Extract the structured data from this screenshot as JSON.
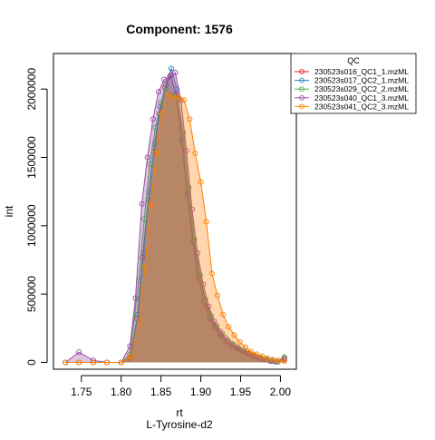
{
  "chart_data": {
    "type": "area",
    "title": "Component: 1576",
    "xlabel": "rt",
    "xlabel2": "L-Tyrosine-d2",
    "ylabel": "int",
    "xlim": [
      1.715,
      2.02
    ],
    "ylim": [
      -50000,
      2260000
    ],
    "x_ticks": [
      1.75,
      1.8,
      1.85,
      1.9,
      1.95,
      2.0
    ],
    "x_tick_labels": [
      "1.75",
      "1.80",
      "1.85",
      "1.90",
      "1.95",
      "2.00"
    ],
    "y_ticks": [
      0,
      500000,
      1000000,
      1500000,
      2000000
    ],
    "y_tick_labels": [
      "0",
      "500000",
      "1000000",
      "1500000",
      "2000000"
    ],
    "legend": {
      "title": "QC",
      "position": "top-right"
    },
    "series": [
      {
        "name": "230523s016_QC1_1.mzML",
        "color": "#e41a1c",
        "x": [
          1.73,
          1.747,
          1.765,
          1.782,
          1.8,
          1.811,
          1.82,
          1.827,
          1.834,
          1.841,
          1.848,
          1.855,
          1.862,
          1.869,
          1.876,
          1.883,
          1.89,
          1.897,
          1.904,
          1.911,
          1.918,
          1.925,
          1.932,
          1.939,
          1.946,
          1.953,
          1.96,
          1.967,
          1.974,
          1.981,
          1.988,
          1.995,
          2.005
        ],
        "y": [
          0,
          0,
          0,
          0,
          0,
          30000,
          320000,
          770000,
          1190000,
          1540000,
          1820000,
          2010000,
          2100000,
          1960000,
          1620000,
          1230000,
          880000,
          620000,
          440000,
          320000,
          250000,
          190000,
          150000,
          120000,
          100000,
          80000,
          60000,
          45000,
          30000,
          20000,
          10000,
          5000,
          20000
        ]
      },
      {
        "name": "230523s017_QC2_1.mzML",
        "color": "#377eb8",
        "x": [
          1.73,
          1.747,
          1.765,
          1.782,
          1.8,
          1.812,
          1.821,
          1.828,
          1.835,
          1.842,
          1.849,
          1.856,
          1.863,
          1.87,
          1.877,
          1.884,
          1.891,
          1.898,
          1.905,
          1.912,
          1.919,
          1.926,
          1.933,
          1.94,
          1.947,
          1.954,
          1.961,
          1.968,
          1.975,
          1.982,
          1.989,
          1.996,
          2.005
        ],
        "y": [
          0,
          0,
          0,
          0,
          0,
          40000,
          350000,
          800000,
          1250000,
          1600000,
          1870000,
          2030000,
          2150000,
          2000000,
          1640000,
          1240000,
          890000,
          640000,
          460000,
          330000,
          260000,
          200000,
          160000,
          130000,
          105000,
          85000,
          65000,
          50000,
          35000,
          25000,
          15000,
          8000,
          30000
        ]
      },
      {
        "name": "230523s029_QC2_2.mzML",
        "color": "#4daf4a",
        "x": [
          1.73,
          1.747,
          1.765,
          1.782,
          1.8,
          1.811,
          1.822,
          1.829,
          1.836,
          1.843,
          1.85,
          1.857,
          1.864,
          1.871,
          1.878,
          1.885,
          1.892,
          1.899,
          1.906,
          1.913,
          1.92,
          1.927,
          1.934,
          1.941,
          1.948,
          1.955,
          1.962,
          1.969,
          1.976,
          1.983,
          1.99,
          1.997,
          2.005
        ],
        "y": [
          0,
          0,
          0,
          0,
          0,
          60000,
          600000,
          1050000,
          1450000,
          1720000,
          1900000,
          2000000,
          1960000,
          1930000,
          1680000,
          1280000,
          900000,
          640000,
          460000,
          340000,
          270000,
          210000,
          160000,
          130000,
          100000,
          80000,
          60000,
          45000,
          30000,
          20000,
          10000,
          5000,
          40000
        ]
      },
      {
        "name": "230523s040_QC1_3.mzML",
        "color": "#984ea3",
        "x": [
          1.73,
          1.747,
          1.765,
          1.782,
          1.8,
          1.811,
          1.818,
          1.826,
          1.833,
          1.84,
          1.847,
          1.854,
          1.861,
          1.868,
          1.875,
          1.882,
          1.889,
          1.896,
          1.903,
          1.91,
          1.917,
          1.924,
          1.931,
          1.938,
          1.945,
          1.952,
          1.959,
          1.966,
          1.973,
          1.98,
          1.987,
          1.994,
          2.005
        ],
        "y": [
          0,
          75000,
          15000,
          0,
          0,
          120000,
          470000,
          1160000,
          1500000,
          1780000,
          1980000,
          2070000,
          2090000,
          2120000,
          1920000,
          1550000,
          1120000,
          800000,
          570000,
          410000,
          300000,
          230000,
          180000,
          140000,
          110000,
          85000,
          65000,
          45000,
          30000,
          20000,
          10000,
          5000,
          30000
        ]
      },
      {
        "name": "230523s041_QC2_3.mzML",
        "color": "#ff7f00",
        "x": [
          1.73,
          1.747,
          1.765,
          1.782,
          1.8,
          1.812,
          1.823,
          1.83,
          1.837,
          1.844,
          1.851,
          1.858,
          1.865,
          1.872,
          1.879,
          1.886,
          1.893,
          1.9,
          1.907,
          1.914,
          1.921,
          1.928,
          1.935,
          1.942,
          1.949,
          1.956,
          1.963,
          1.97,
          1.977,
          1.984,
          1.991,
          1.998,
          2.005
        ],
        "y": [
          0,
          0,
          0,
          0,
          0,
          40000,
          300000,
          700000,
          1150000,
          1530000,
          1820000,
          1970000,
          1940000,
          1940000,
          1920000,
          1780000,
          1530000,
          1320000,
          1030000,
          650000,
          490000,
          350000,
          260000,
          200000,
          150000,
          110000,
          80000,
          60000,
          45000,
          30000,
          20000,
          15000,
          10000
        ]
      }
    ]
  }
}
